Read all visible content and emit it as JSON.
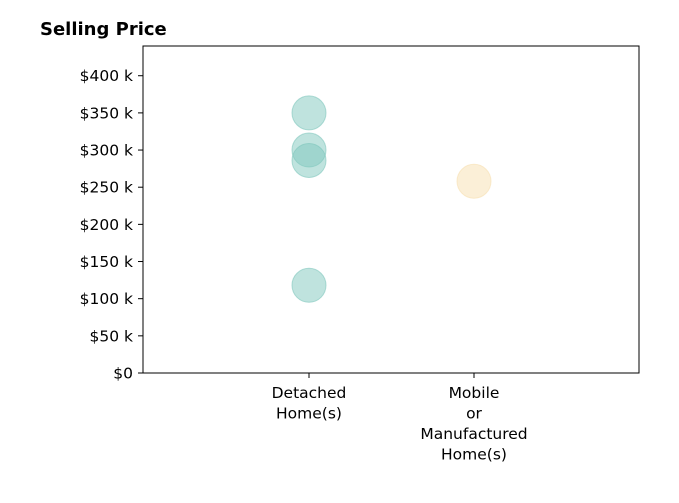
{
  "chart_data": {
    "type": "scatter",
    "title": "Selling Price",
    "xlabel": "",
    "ylabel": "",
    "categories": [
      [
        "Detached",
        "Home(s)"
      ],
      [
        "Mobile",
        "or",
        "Manufactured",
        "Home(s)"
      ]
    ],
    "ylim": [
      0,
      440000
    ],
    "yticks": [
      0,
      50000,
      100000,
      150000,
      200000,
      250000,
      300000,
      350000,
      400000
    ],
    "ytick_labels": [
      "$0",
      "$50 k",
      "$100 k",
      "$150 k",
      "$200 k",
      "$250 k",
      "$300 k",
      "$350 k",
      "$400 k"
    ],
    "grid": false,
    "series": [
      {
        "category_index": 0,
        "color": "#7fc7bd",
        "values": [
          350000,
          300000,
          286000,
          118000
        ]
      },
      {
        "category_index": 1,
        "color": "#f7e0b0",
        "values": [
          258000
        ]
      }
    ]
  }
}
